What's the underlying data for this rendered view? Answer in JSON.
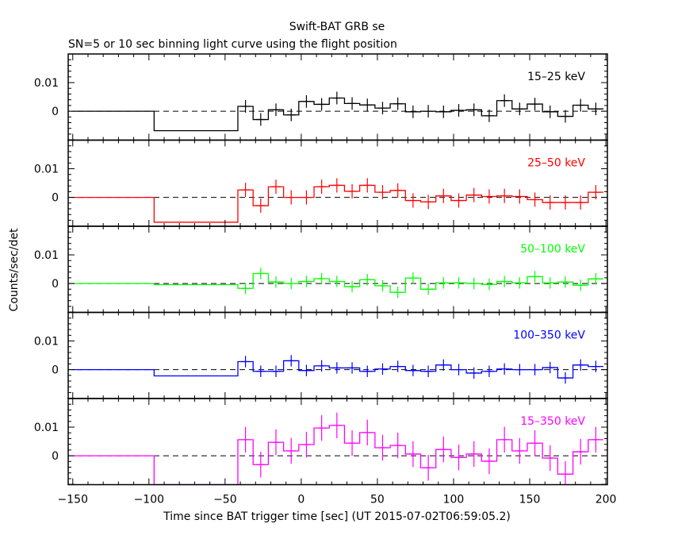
{
  "chart_data": {
    "type": "line",
    "title": "Swift-BAT GRB se",
    "subtitle": "SN=5 or 10 sec binning light curve using the flight position",
    "xlabel": "Time since BAT trigger time [sec] (UT 2015-07-02T06:59:05.2)",
    "ylabel": "Counts/sec/det",
    "xlim": [
      -153,
      201
    ],
    "ylim": [
      -0.0101,
      0.02
    ],
    "xticks": [
      -150,
      -100,
      -50,
      0,
      50,
      100,
      150,
      200
    ],
    "xtick_labels": [
      "−150",
      "−100",
      "−50",
      "0",
      "50",
      "100",
      "150",
      "200"
    ],
    "ytick_labels": [
      "0.01",
      "0"
    ],
    "ytick_values": [
      0.01,
      0
    ],
    "long_bins": [
      [
        -150,
        -96.6
      ],
      [
        -96.6,
        -41.6
      ]
    ],
    "bin_start": -41.6,
    "bin_width": 10,
    "panels": [
      {
        "label": "15–25 keV",
        "color": "#000000",
        "err": 0.0022,
        "long_values": [
          0,
          -0.0068
        ],
        "values": [
          0.0017,
          -0.0029,
          0.0005,
          -0.0013,
          0.0034,
          0.0024,
          0.0046,
          0.0027,
          0.0022,
          0.0011,
          0.0026,
          -0.0002,
          0,
          -0.0002,
          0.0003,
          0.0005,
          -0.0016,
          0.0037,
          0.0008,
          0.0025,
          -0.0002,
          -0.0018,
          0.0021,
          0.0008
        ]
      },
      {
        "label": "25–50 keV",
        "color": "#ff0000",
        "err": 0.0025,
        "long_values": [
          0,
          -0.0087
        ],
        "values": [
          0.0026,
          -0.0029,
          0.0037,
          0,
          0,
          0.0037,
          0.0042,
          0.0021,
          0.0042,
          0.0018,
          0.0024,
          -0.0011,
          -0.0016,
          0.0005,
          -0.0011,
          0.0008,
          0.0003,
          0.0005,
          0.0003,
          -0.0008,
          -0.0018,
          -0.0018,
          -0.0018,
          0.0018
        ]
      },
      {
        "label": "50–100 keV",
        "color": "#00ff00",
        "err": 0.002,
        "long_values": [
          0,
          -0.0004
        ],
        "values": [
          -0.0017,
          0.0035,
          0.0005,
          0,
          0.0007,
          0.0017,
          0.0007,
          -0.0011,
          0.0013,
          -0.0008,
          -0.0031,
          0.0019,
          -0.002,
          0.0002,
          0.0002,
          0,
          -0.0003,
          0.0007,
          0.0002,
          0.0024,
          0.0002,
          0.0005,
          -0.0006,
          0.0016
        ]
      },
      {
        "label": "100–350 keV",
        "color": "#0000ff",
        "err": 0.002,
        "long_values": [
          0,
          -0.0022
        ],
        "values": [
          0.0028,
          -0.0006,
          -0.0006,
          0.0031,
          -0.0003,
          0.0013,
          0.0006,
          0.0006,
          -0.0006,
          0.0002,
          0.0011,
          -0.0003,
          -0.0006,
          0.0016,
          0,
          -0.0012,
          -0.0006,
          0.0002,
          0,
          0,
          0.0007,
          -0.0029,
          0.0016,
          0.0011
        ]
      },
      {
        "label": "15–350 keV",
        "color": "#ff00ff",
        "err": 0.0045,
        "long_values": [
          0,
          -0.02
        ],
        "values": [
          0.0056,
          -0.0031,
          0.0047,
          0.0017,
          0.0039,
          0.0097,
          0.0106,
          0.0044,
          0.0081,
          0.0028,
          0.0036,
          0.0006,
          -0.0042,
          0.0022,
          -0.0006,
          0.0006,
          -0.0019,
          0.0056,
          0.0017,
          0.0044,
          -0.0008,
          -0.0064,
          0.0014,
          0.0056
        ]
      }
    ]
  }
}
